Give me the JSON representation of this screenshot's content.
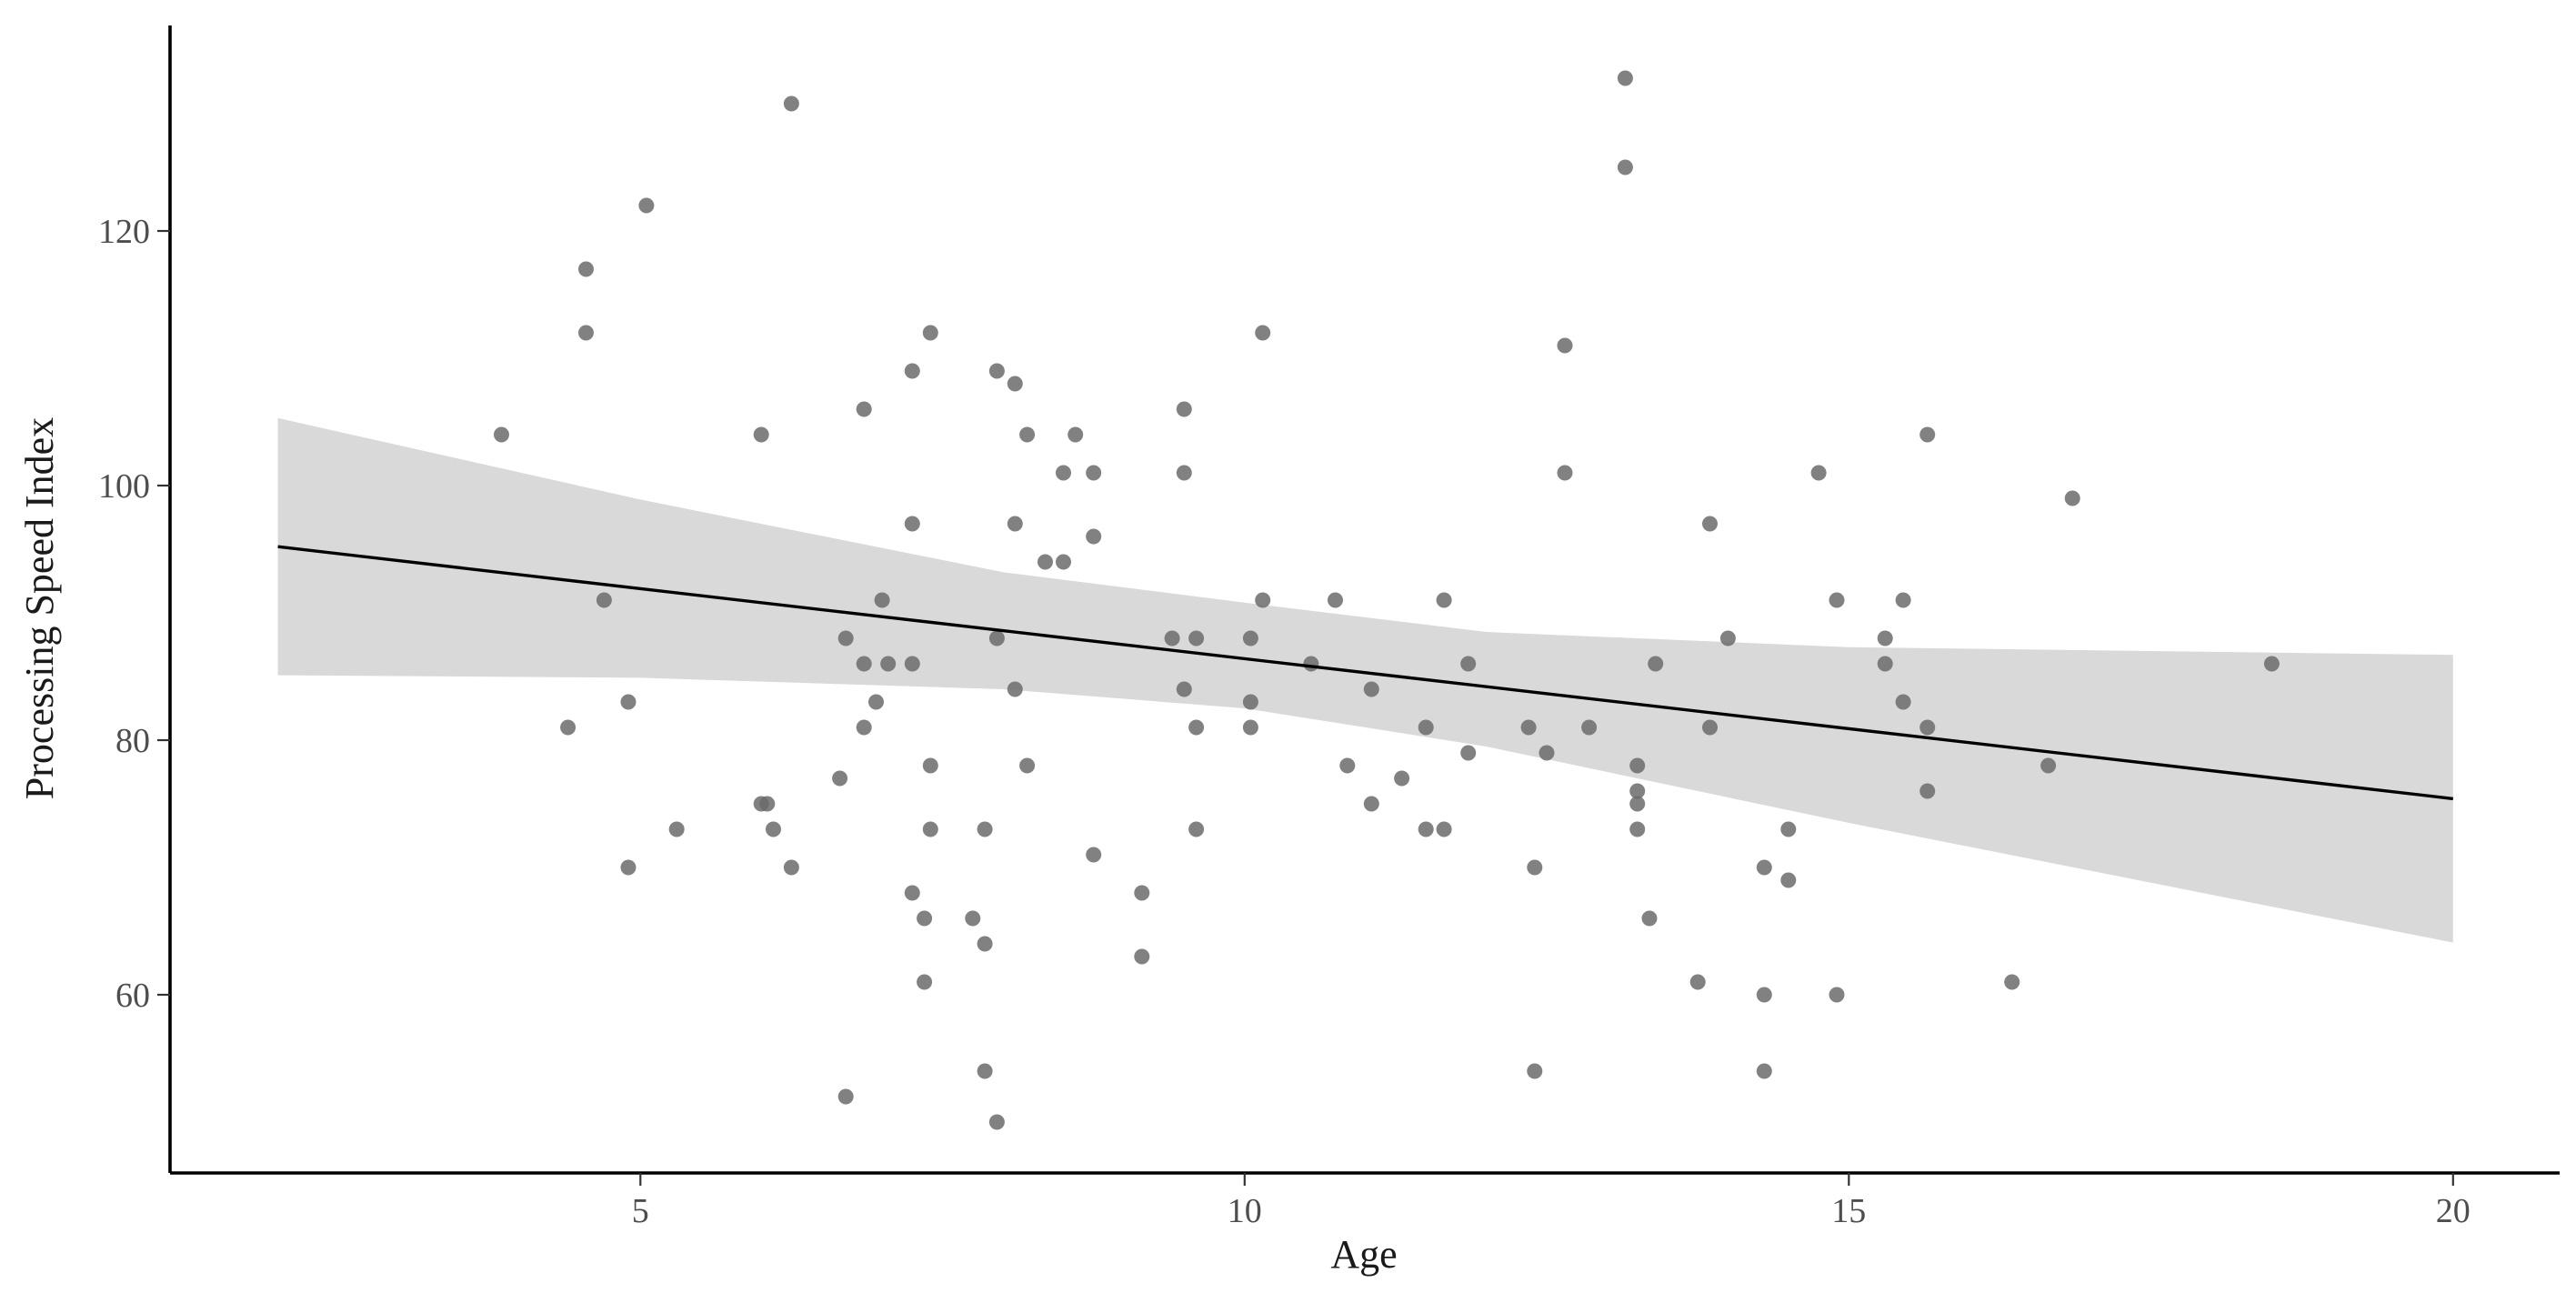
{
  "chart_data": {
    "type": "scatter",
    "title": "",
    "xlabel": "Age",
    "ylabel": "Processing Speed Index",
    "xlim": [
      1.4,
      20.2
    ],
    "ylim": [
      45.5,
      136
    ],
    "x_ticks": [
      5,
      10,
      15,
      20
    ],
    "y_ticks": [
      60,
      80,
      100,
      120
    ],
    "grid": false,
    "legend": "none",
    "colors": {
      "points": "#6b6b6b",
      "line": "#000000",
      "band": "#d9d9d9",
      "axis": "#000000",
      "tick_text": "#4d4d4d"
    },
    "points": [
      {
        "x": 3.85,
        "y": 104
      },
      {
        "x": 4.4,
        "y": 81
      },
      {
        "x": 4.55,
        "y": 117
      },
      {
        "x": 4.55,
        "y": 112
      },
      {
        "x": 4.7,
        "y": 91
      },
      {
        "x": 4.9,
        "y": 83
      },
      {
        "x": 4.9,
        "y": 70
      },
      {
        "x": 5.05,
        "y": 122
      },
      {
        "x": 5.3,
        "y": 73
      },
      {
        "x": 6.0,
        "y": 104
      },
      {
        "x": 6.0,
        "y": 75
      },
      {
        "x": 6.05,
        "y": 75
      },
      {
        "x": 6.1,
        "y": 73
      },
      {
        "x": 6.25,
        "y": 130
      },
      {
        "x": 6.25,
        "y": 70
      },
      {
        "x": 6.65,
        "y": 77
      },
      {
        "x": 6.7,
        "y": 88
      },
      {
        "x": 6.7,
        "y": 52
      },
      {
        "x": 6.85,
        "y": 106
      },
      {
        "x": 6.85,
        "y": 86
      },
      {
        "x": 6.85,
        "y": 81
      },
      {
        "x": 6.95,
        "y": 83
      },
      {
        "x": 7.0,
        "y": 91
      },
      {
        "x": 7.05,
        "y": 86
      },
      {
        "x": 7.25,
        "y": 109
      },
      {
        "x": 7.25,
        "y": 97
      },
      {
        "x": 7.25,
        "y": 86
      },
      {
        "x": 7.25,
        "y": 68
      },
      {
        "x": 7.35,
        "y": 66
      },
      {
        "x": 7.35,
        "y": 61
      },
      {
        "x": 7.4,
        "y": 112
      },
      {
        "x": 7.4,
        "y": 78
      },
      {
        "x": 7.4,
        "y": 73
      },
      {
        "x": 7.75,
        "y": 66
      },
      {
        "x": 7.85,
        "y": 73
      },
      {
        "x": 7.85,
        "y": 64
      },
      {
        "x": 7.85,
        "y": 54
      },
      {
        "x": 7.95,
        "y": 109
      },
      {
        "x": 7.95,
        "y": 88
      },
      {
        "x": 7.95,
        "y": 50
      },
      {
        "x": 8.1,
        "y": 108
      },
      {
        "x": 8.1,
        "y": 97
      },
      {
        "x": 8.1,
        "y": 84
      },
      {
        "x": 8.2,
        "y": 104
      },
      {
        "x": 8.2,
        "y": 78
      },
      {
        "x": 8.35,
        "y": 94
      },
      {
        "x": 8.5,
        "y": 101
      },
      {
        "x": 8.5,
        "y": 94
      },
      {
        "x": 8.6,
        "y": 104
      },
      {
        "x": 8.75,
        "y": 101
      },
      {
        "x": 8.75,
        "y": 96
      },
      {
        "x": 8.75,
        "y": 71
      },
      {
        "x": 9.15,
        "y": 68
      },
      {
        "x": 9.15,
        "y": 63
      },
      {
        "x": 9.4,
        "y": 88
      },
      {
        "x": 9.5,
        "y": 106
      },
      {
        "x": 9.5,
        "y": 101
      },
      {
        "x": 9.5,
        "y": 84
      },
      {
        "x": 9.6,
        "y": 88
      },
      {
        "x": 9.6,
        "y": 81
      },
      {
        "x": 9.6,
        "y": 73
      },
      {
        "x": 10.05,
        "y": 88
      },
      {
        "x": 10.05,
        "y": 83
      },
      {
        "x": 10.05,
        "y": 81
      },
      {
        "x": 10.15,
        "y": 112
      },
      {
        "x": 10.15,
        "y": 91
      },
      {
        "x": 10.55,
        "y": 86
      },
      {
        "x": 10.75,
        "y": 91
      },
      {
        "x": 10.85,
        "y": 78
      },
      {
        "x": 11.05,
        "y": 84
      },
      {
        "x": 11.05,
        "y": 75
      },
      {
        "x": 11.3,
        "y": 77
      },
      {
        "x": 11.5,
        "y": 81
      },
      {
        "x": 11.5,
        "y": 73
      },
      {
        "x": 11.65,
        "y": 91
      },
      {
        "x": 11.65,
        "y": 73
      },
      {
        "x": 11.85,
        "y": 86
      },
      {
        "x": 11.85,
        "y": 79
      },
      {
        "x": 12.35,
        "y": 81
      },
      {
        "x": 12.4,
        "y": 70
      },
      {
        "x": 12.4,
        "y": 54
      },
      {
        "x": 12.5,
        "y": 79
      },
      {
        "x": 12.65,
        "y": 111
      },
      {
        "x": 12.65,
        "y": 101
      },
      {
        "x": 12.85,
        "y": 81
      },
      {
        "x": 13.15,
        "y": 132
      },
      {
        "x": 13.15,
        "y": 125
      },
      {
        "x": 13.25,
        "y": 78
      },
      {
        "x": 13.25,
        "y": 76
      },
      {
        "x": 13.25,
        "y": 75
      },
      {
        "x": 13.25,
        "y": 73
      },
      {
        "x": 13.35,
        "y": 66
      },
      {
        "x": 13.4,
        "y": 86
      },
      {
        "x": 13.75,
        "y": 61
      },
      {
        "x": 13.85,
        "y": 97
      },
      {
        "x": 13.85,
        "y": 81
      },
      {
        "x": 14.0,
        "y": 88
      },
      {
        "x": 14.3,
        "y": 70
      },
      {
        "x": 14.3,
        "y": 60
      },
      {
        "x": 14.3,
        "y": 54
      },
      {
        "x": 14.5,
        "y": 73
      },
      {
        "x": 14.5,
        "y": 69
      },
      {
        "x": 14.75,
        "y": 101
      },
      {
        "x": 14.9,
        "y": 91
      },
      {
        "x": 14.9,
        "y": 60
      },
      {
        "x": 15.3,
        "y": 88
      },
      {
        "x": 15.3,
        "y": 86
      },
      {
        "x": 15.45,
        "y": 91
      },
      {
        "x": 15.45,
        "y": 83
      },
      {
        "x": 15.65,
        "y": 104
      },
      {
        "x": 15.65,
        "y": 81
      },
      {
        "x": 15.65,
        "y": 76
      },
      {
        "x": 16.35,
        "y": 61
      },
      {
        "x": 16.65,
        "y": 78
      },
      {
        "x": 16.85,
        "y": 99
      },
      {
        "x": 18.5,
        "y": 86
      }
    ],
    "regression_line": [
      {
        "x": 2.0,
        "y": 95.2
      },
      {
        "x": 20.0,
        "y": 75.4
      }
    ],
    "confidence_band": {
      "upper": [
        {
          "x": 2.0,
          "y": 105.3
        },
        {
          "x": 5.0,
          "y": 98.9
        },
        {
          "x": 8.0,
          "y": 93.2
        },
        {
          "x": 10.0,
          "y": 90.8
        },
        {
          "x": 12.0,
          "y": 88.5
        },
        {
          "x": 15.0,
          "y": 87.3
        },
        {
          "x": 20.0,
          "y": 86.7
        }
      ],
      "lower": [
        {
          "x": 2.0,
          "y": 85.1
        },
        {
          "x": 5.0,
          "y": 84.9
        },
        {
          "x": 8.0,
          "y": 84.0
        },
        {
          "x": 10.0,
          "y": 82.5
        },
        {
          "x": 12.0,
          "y": 79.5
        },
        {
          "x": 15.0,
          "y": 73.5
        },
        {
          "x": 20.0,
          "y": 64.1
        }
      ]
    }
  }
}
